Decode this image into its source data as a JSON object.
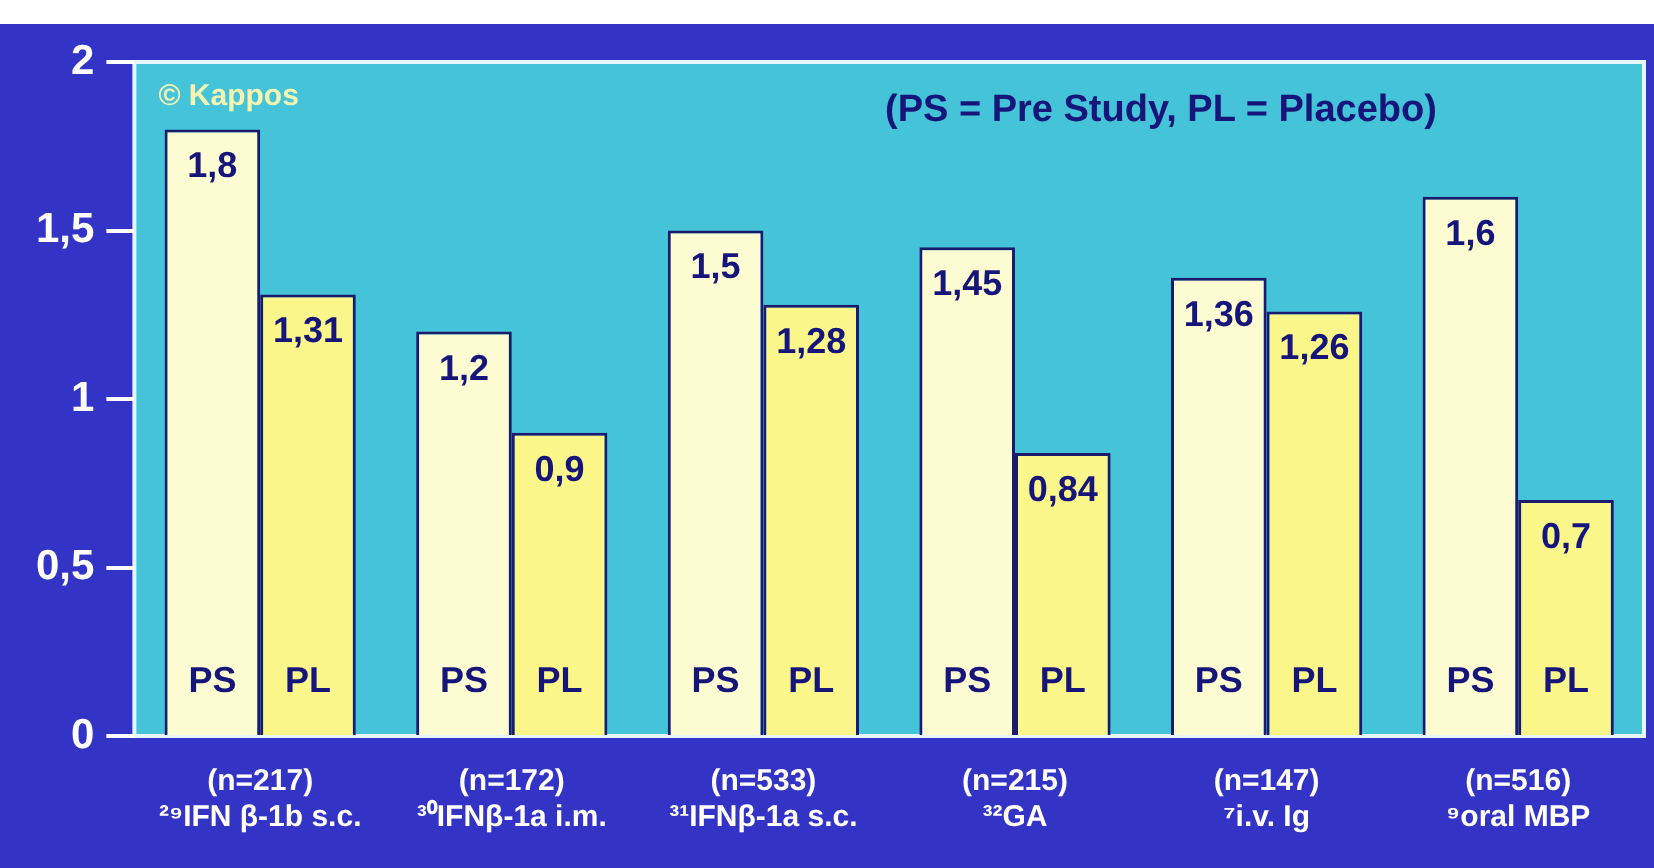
{
  "chart_data": {
    "type": "bar",
    "categories": [
      "(n=217)\n²⁹IFN β-1b s.c.",
      "(n=172)\n³⁰IFNβ-1a i.m.",
      "(n=533)\n³¹IFNβ-1a s.c.",
      "(n=215)\n³²GA",
      "(n=147)\n⁷i.v. Ig",
      "(n=516)\n⁹oral MBP"
    ],
    "series": [
      {
        "name": "PS",
        "color": "#fdfbd2",
        "values": [
          1.8,
          1.2,
          1.5,
          1.45,
          1.36,
          1.6
        ],
        "value_labels": [
          "1,8",
          "1,2",
          "1,5",
          "1,45",
          "1,36",
          "1,6"
        ]
      },
      {
        "name": "PL",
        "color": "#fbf68a",
        "values": [
          1.31,
          0.9,
          1.28,
          0.84,
          1.26,
          0.7
        ],
        "value_labels": [
          "1,31",
          "0,9",
          "1,28",
          "0,84",
          "1,26",
          "0,7"
        ]
      }
    ],
    "ylim": [
      0,
      2
    ],
    "yticks": [
      0,
      {
        "value": 0.5,
        "label": "0,5"
      },
      1,
      {
        "value": 1.5,
        "label": "1,5"
      },
      2
    ],
    "annotations": [
      "© Kappos",
      "(PS = Pre Study, PL = Placebo)"
    ]
  }
}
